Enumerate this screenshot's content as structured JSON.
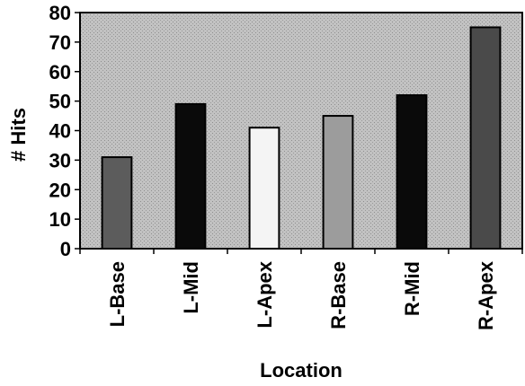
{
  "chart_data": {
    "type": "bar",
    "title": "",
    "xlabel": "Location",
    "ylabel": "# Hits",
    "categories": [
      "L-Base",
      "L-Mid",
      "L-Apex",
      "R-Base",
      "R-Mid",
      "R-Apex"
    ],
    "values": [
      31,
      49,
      41,
      45,
      52,
      75
    ],
    "ylim": [
      0,
      80
    ],
    "yticks": [
      0,
      10,
      20,
      30,
      40,
      50,
      60,
      70,
      80
    ],
    "grid": false,
    "legend": "none",
    "colors": {
      "plot_background": "#c4c4c4",
      "bars": [
        "#5c5c5c",
        "#0a0a0a",
        "#f4f4f4",
        "#9c9c9c",
        "#0a0a0a",
        "#4a4a4a"
      ]
    }
  }
}
